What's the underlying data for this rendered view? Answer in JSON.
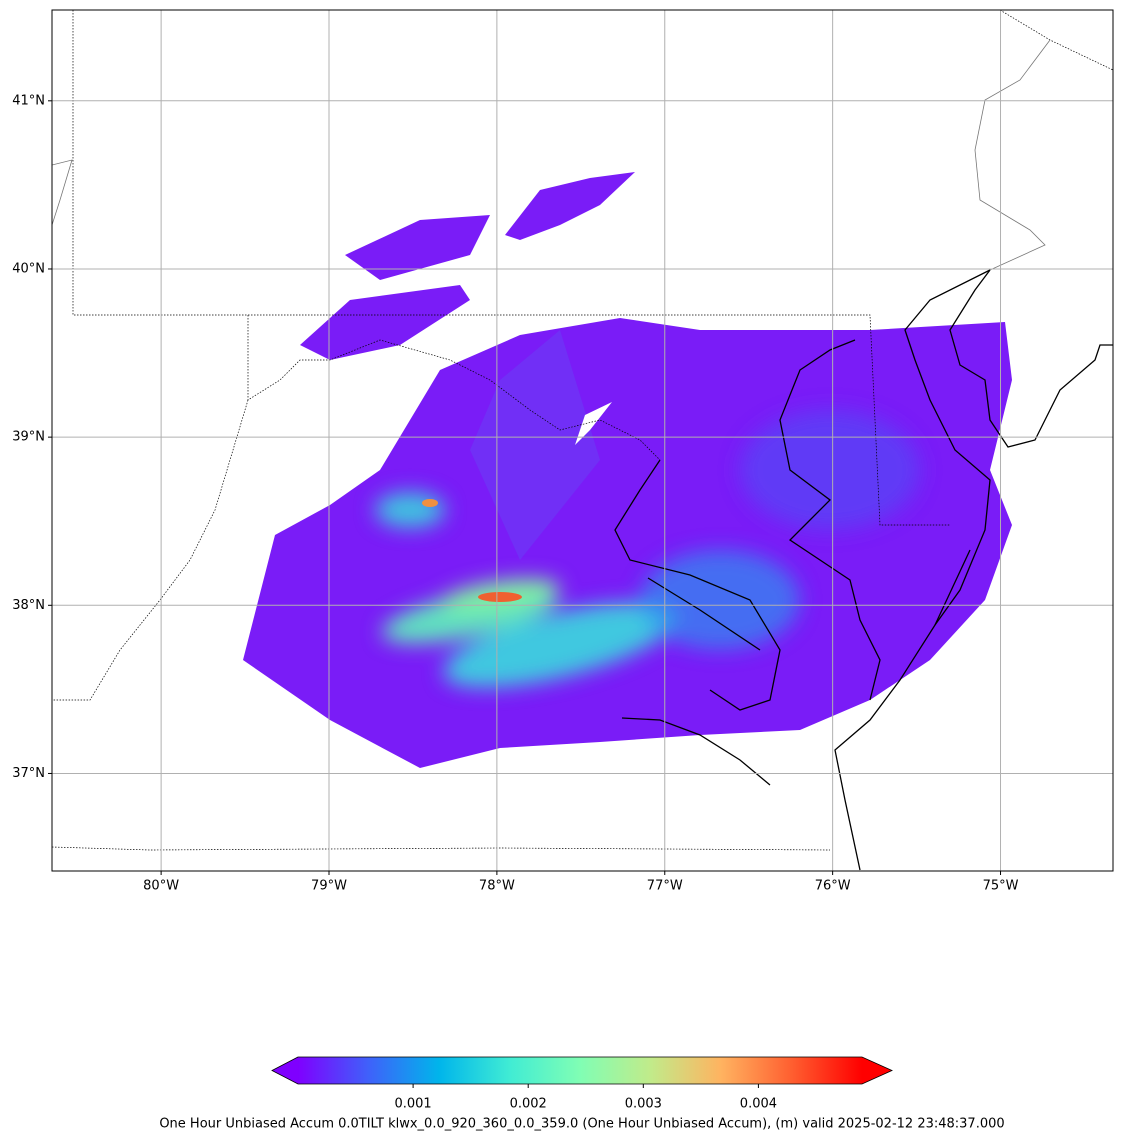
{
  "map": {
    "xlim": [
      -80.65,
      -74.33
    ],
    "ylim": [
      36.42,
      41.54
    ],
    "grid": true,
    "xticks": [
      {
        "value": -80,
        "label": "80°W"
      },
      {
        "value": -79,
        "label": "79°W"
      },
      {
        "value": -78,
        "label": "78°W"
      },
      {
        "value": -77,
        "label": "77°W"
      },
      {
        "value": -76,
        "label": "76°W"
      },
      {
        "value": -75,
        "label": "75°W"
      }
    ],
    "yticks": [
      {
        "value": 37,
        "label": "37°N"
      },
      {
        "value": 38,
        "label": "38°N"
      },
      {
        "value": 39,
        "label": "39°N"
      },
      {
        "value": 40,
        "label": "40°N"
      },
      {
        "value": 41,
        "label": "41°N"
      }
    ]
  },
  "colorbar": {
    "clim": [
      0,
      0.0049
    ],
    "ticks": [
      0.001,
      0.002,
      0.003,
      0.004
    ],
    "colors": [
      "#7f00ff",
      "#3f61fa",
      "#00b5eb",
      "#40ecd4",
      "#80feb4",
      "#c1eb8a",
      "#ffb360",
      "#ff5f30",
      "#ff0000"
    ],
    "label": "One Hour Unbiased Accum 0.0TILT klwx_0.0_920_360_0.0_359.0 (One Hour Unbiased Accum), (m) valid 2025-02-12 23:48:37.000"
  }
}
